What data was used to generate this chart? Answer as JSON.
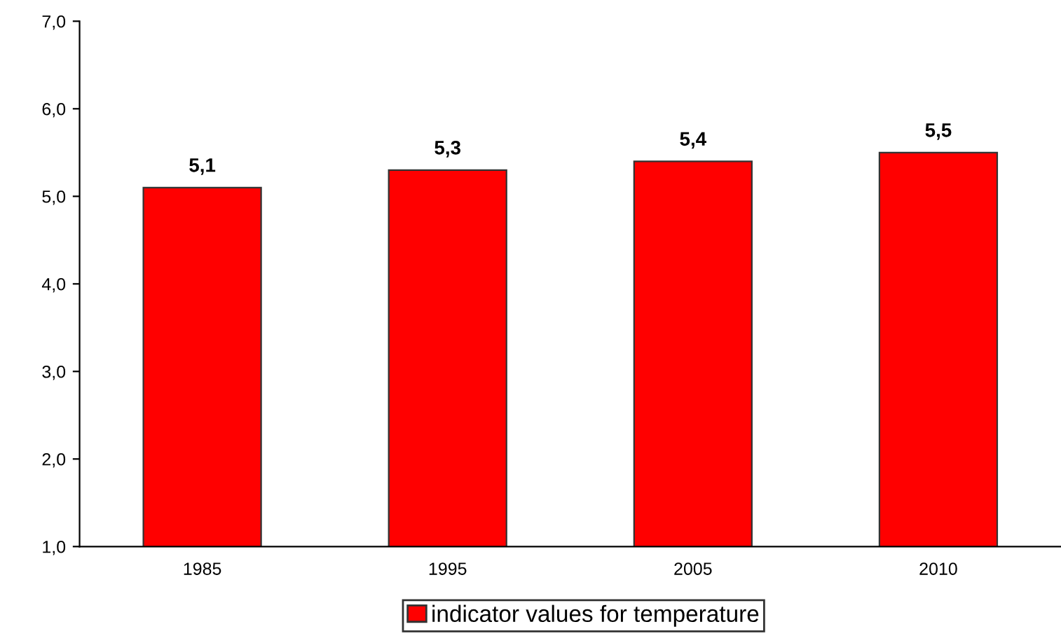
{
  "chart_data": {
    "type": "bar",
    "categories": [
      "1985",
      "1995",
      "2005",
      "2010"
    ],
    "series": [
      {
        "name": "indicator values for temperature",
        "color": "#ff0000",
        "values": [
          5.1,
          5.3,
          5.4,
          5.5
        ],
        "value_labels": [
          "5,1",
          "5,3",
          "5,4",
          "5,5"
        ]
      }
    ],
    "ylim": [
      1,
      7
    ],
    "yticks": [
      {
        "value": 1,
        "label": "1,0"
      },
      {
        "value": 2,
        "label": "2,0"
      },
      {
        "value": 3,
        "label": "3,0"
      },
      {
        "value": 4,
        "label": "4,0"
      },
      {
        "value": 5,
        "label": "5,0"
      },
      {
        "value": 6,
        "label": "6,0"
      },
      {
        "value": 7,
        "label": "7,0"
      }
    ],
    "grid": false,
    "legend": "bottom"
  }
}
